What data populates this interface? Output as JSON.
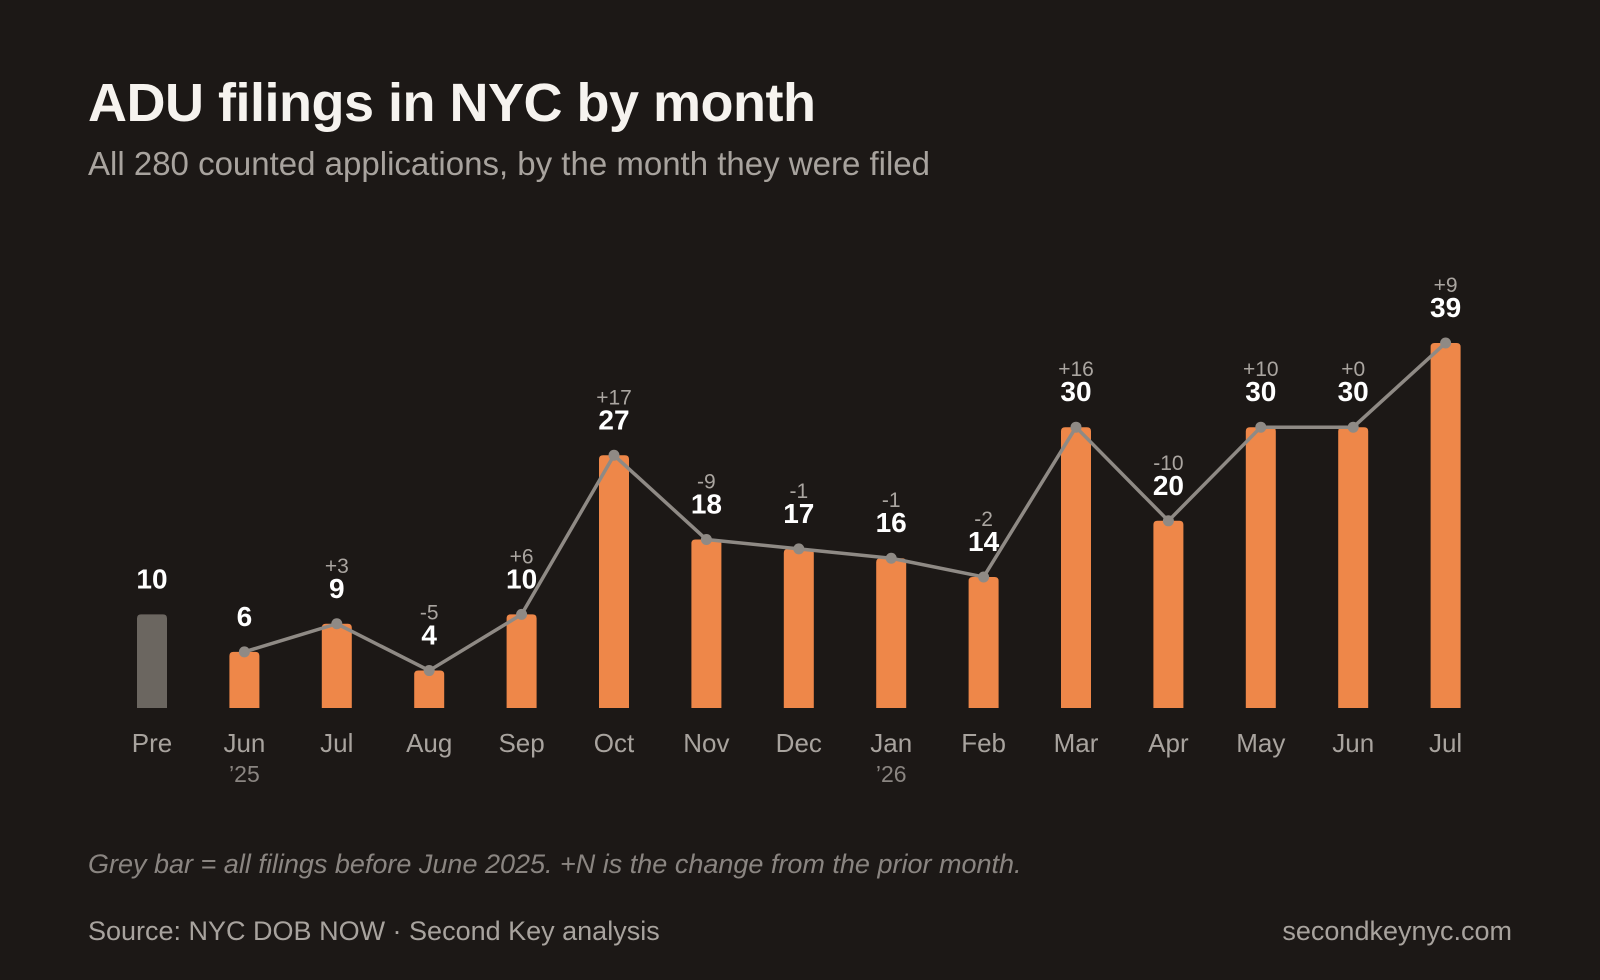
{
  "header": {
    "title": "ADU filings in NYC by month",
    "subtitle": "All 280 counted applications, by the month they were filed"
  },
  "footer": {
    "note": "Grey bar = all filings before June 2025. +N is the change from the prior month.",
    "source": "Source: NYC DOB NOW · Second Key analysis",
    "site": "secondkeynyc.com"
  },
  "colors": {
    "background": "#1c1816",
    "bar": "#ee8749",
    "pre_bar": "#6b6660",
    "line": "#8f8a85",
    "value_label": "#ffffff",
    "delta_label": "#aaa5a0",
    "tick_label": "#a8a39e"
  },
  "chart_data": {
    "type": "bar",
    "title": "ADU filings in NYC by month",
    "subtitle": "All 280 counted applications, by the month they were filed",
    "categories": [
      "Pre",
      "Jun",
      "Jul",
      "Aug",
      "Sep",
      "Oct",
      "Nov",
      "Dec",
      "Jan",
      "Feb",
      "Mar",
      "Apr",
      "May",
      "Jun",
      "Jul"
    ],
    "year_labels": [
      "",
      "’25",
      "",
      "",
      "",
      "",
      "",
      "",
      "’26",
      "",
      "",
      "",
      "",
      "",
      ""
    ],
    "values": [
      10,
      6,
      9,
      4,
      10,
      27,
      18,
      17,
      16,
      14,
      30,
      20,
      30,
      30,
      39
    ],
    "delta_labels": [
      "",
      "",
      "+3",
      "-5",
      "+6",
      "+17",
      "-9",
      "-1",
      "-1",
      "-2",
      "+16",
      "-10",
      "+10",
      "+0",
      "+9"
    ],
    "line_overlay": true,
    "line_starts_at_index": 1,
    "highlight": {
      "index": 0,
      "style": "grey"
    },
    "xlabel": "",
    "ylabel": "",
    "ylim": [
      0,
      39
    ],
    "grid": false,
    "legend": "none"
  }
}
